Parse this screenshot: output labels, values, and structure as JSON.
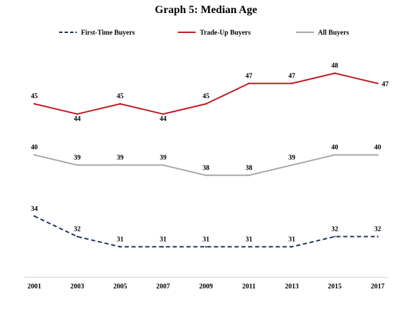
{
  "chart_data": {
    "type": "line",
    "title": "Graph 5: Median Age",
    "xlabel": "",
    "ylabel": "",
    "ylim": [
      28,
      51
    ],
    "grid": false,
    "legend_position": "top",
    "categories": [
      "2001",
      "2003",
      "2005",
      "2007",
      "2009",
      "2011",
      "2013",
      "2015",
      "2017"
    ],
    "series": [
      {
        "name": "First-Time Buyers",
        "color": "#1f2f5c",
        "style": "dashed",
        "values": [
          34,
          32,
          31,
          31,
          31,
          31,
          31,
          32,
          32
        ]
      },
      {
        "name": "Trade-Up Buyers",
        "color": "#c0161d",
        "style": "solid",
        "values": [
          45,
          44,
          45,
          44,
          45,
          47,
          47,
          48,
          47
        ]
      },
      {
        "name": "All Buyers",
        "color": "#a6a6a6",
        "style": "solid",
        "values": [
          40,
          39,
          39,
          39,
          38,
          38,
          39,
          40,
          40
        ]
      }
    ]
  }
}
